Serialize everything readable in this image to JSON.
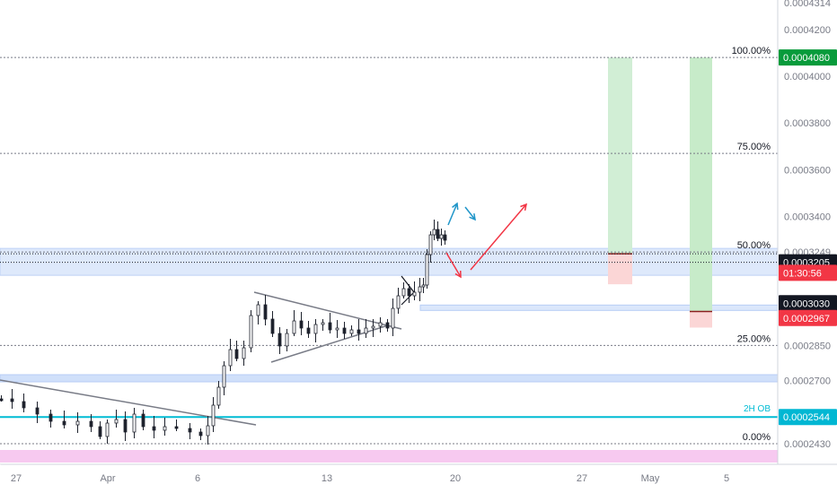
{
  "chart_data": {
    "type": "candlestick",
    "title": "",
    "price_axis": {
      "ticks": [
        "0.0004314",
        "0.0004200",
        "0.0004000",
        "0.0003800",
        "0.0003600",
        "0.0003400",
        "0.0003249",
        "0.0002850",
        "0.0002700",
        "0.0002430"
      ],
      "ylim": [
        0.00024,
        0.000432
      ]
    },
    "time_axis": {
      "labels": [
        "27",
        "Apr",
        "6",
        "13",
        "20",
        "27",
        "May",
        "5"
      ]
    },
    "fib_levels": [
      {
        "label": "100.00%",
        "value": 0.000408
      },
      {
        "label": "75.00%",
        "value": 0.000367
      },
      {
        "label": "50.00%",
        "value": 0.0003249
      },
      {
        "label": "25.00%",
        "value": 0.000285
      },
      {
        "label": "0.00%",
        "value": 0.000243
      }
    ],
    "price_tags": [
      {
        "label": "0.0004080",
        "value": 0.000408,
        "color": "#089b3b"
      },
      {
        "label": "0.0003205",
        "value": 0.0003205,
        "color": "#131722"
      },
      {
        "label": "01:30:56",
        "value": 0.000316,
        "color": "#f23645"
      },
      {
        "label": "0.0003030",
        "value": 0.000303,
        "color": "#131722"
      },
      {
        "label": "0.0002967",
        "value": 0.0002967,
        "color": "#f23645"
      },
      {
        "label": "0.0002544",
        "value": 0.0002544,
        "color": "#00b7d3"
      }
    ],
    "annotations": [
      {
        "text": "2H OB",
        "value": 0.0002544,
        "color": "#00bcd4"
      }
    ],
    "colors": {
      "candle": "#1e222d",
      "zone_fill": "#dbe7fb",
      "zone_border": "#b7cdf5",
      "ob_line": "#00bcd4",
      "bottom_band": "#f7c9f0",
      "target_green": "#d1eed5",
      "stop_red": "#fbd6d6",
      "arrow_red": "#f23645",
      "arrow_blue": "#2196c9"
    }
  }
}
